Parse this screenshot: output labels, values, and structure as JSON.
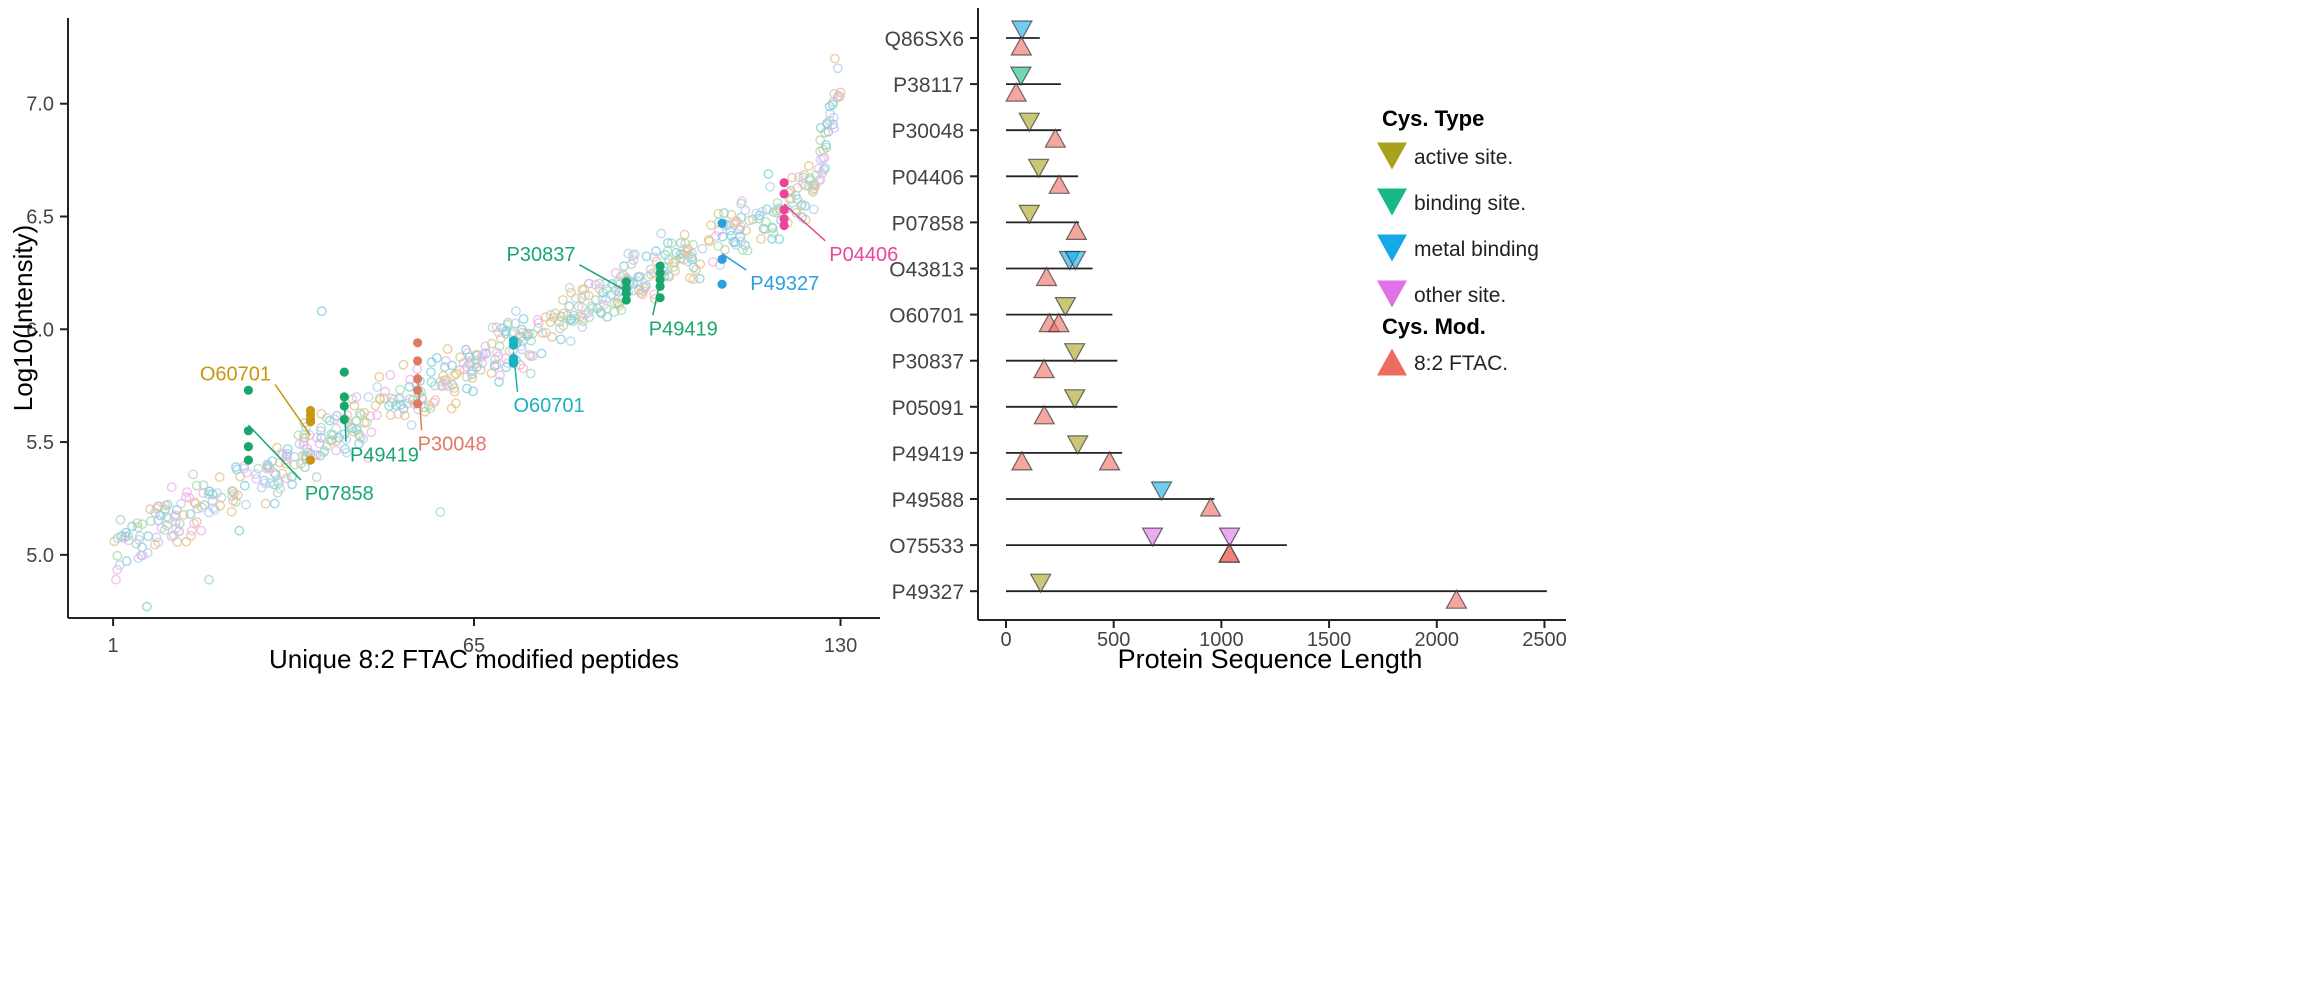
{
  "chart_data": [
    {
      "type": "scatter",
      "xlabel": "Unique 8:2 FTAC modified peptides",
      "ylabel": "Log10(Intensity)",
      "xlim": [
        -7,
        137
      ],
      "ylim": [
        4.72,
        7.38
      ],
      "x_ticks": [
        1,
        65,
        130
      ],
      "y_ticks": [
        5.0,
        5.5,
        6.0,
        6.5,
        7.0
      ],
      "y_tick_labels": [
        "5.0",
        "5.5",
        "6.0",
        "6.5",
        "7.0"
      ],
      "grid": false,
      "legend": "none",
      "background_point_colors": [
        "#7fd0df",
        "#e3c48b",
        "#f3b3ea",
        "#a8dbb6",
        "#b9cfea"
      ],
      "background_point_count": 660,
      "highlight_groups": [
        {
          "label": "P07858",
          "color": "#1aa76e",
          "x": [
            25,
            25,
            25,
            25
          ],
          "y": [
            5.73,
            5.55,
            5.48,
            5.42
          ],
          "label_pos": [
            35,
            5.27
          ]
        },
        {
          "label": "O60701",
          "color": "#c8960f",
          "x": [
            36,
            36,
            36,
            36,
            36
          ],
          "y": [
            5.64,
            5.62,
            5.6,
            5.59,
            5.42
          ],
          "label_pos": [
            29,
            5.8
          ]
        },
        {
          "label": "P49419",
          "color": "#1aa76e",
          "x": [
            42,
            42,
            42,
            42
          ],
          "y": [
            5.81,
            5.7,
            5.66,
            5.6
          ],
          "label_pos": [
            43,
            5.44
          ]
        },
        {
          "label": "P30048",
          "color": "#e07b62",
          "x": [
            55,
            55,
            55,
            55,
            55
          ],
          "y": [
            5.94,
            5.86,
            5.78,
            5.73,
            5.67
          ],
          "label_pos": [
            55,
            5.49
          ]
        },
        {
          "label": "O60701",
          "color": "#19b3bf",
          "x": [
            72,
            72,
            72,
            72,
            72
          ],
          "y": [
            5.95,
            5.93,
            5.87,
            5.86,
            5.85
          ],
          "label_pos": [
            72,
            5.66
          ]
        },
        {
          "label": "P30837",
          "color": "#1aa76e",
          "x": [
            92,
            92,
            92,
            92
          ],
          "y": [
            6.21,
            6.18,
            6.16,
            6.13
          ],
          "label_pos": [
            83,
            6.33
          ]
        },
        {
          "label": "P49419",
          "color": "#1aa76e",
          "x": [
            98,
            98,
            98,
            98,
            98
          ],
          "y": [
            6.28,
            6.25,
            6.22,
            6.19,
            6.14
          ],
          "label_pos": [
            96,
            6.0
          ]
        },
        {
          "label": "P49327",
          "color": "#2b9fe0",
          "x": [
            109,
            109,
            109
          ],
          "y": [
            6.47,
            6.31,
            6.2
          ],
          "label_pos": [
            114,
            6.2
          ]
        },
        {
          "label": "P04406",
          "color": "#e8479c",
          "x": [
            120,
            120,
            120,
            120,
            120
          ],
          "y": [
            6.65,
            6.6,
            6.53,
            6.49,
            6.46
          ],
          "label_pos": [
            128,
            6.33
          ]
        }
      ]
    },
    {
      "type": "dot-range",
      "xlabel": "Protein Sequence Length",
      "ylabel": "",
      "xlim": [
        -130,
        2600
      ],
      "x_ticks": [
        0,
        500,
        1000,
        1500,
        2000,
        2500
      ],
      "x_tick_labels": [
        "0",
        "500",
        "1000",
        "1500",
        "2000",
        "2500"
      ],
      "grid": false,
      "legend_position": "right",
      "legend": {
        "type_title": "Cys. Type",
        "type_items": [
          {
            "label": "active site.",
            "color": "#a6a21c",
            "shape": "triangle-down"
          },
          {
            "label": "binding site.",
            "color": "#16b887",
            "shape": "triangle-down"
          },
          {
            "label": "metal binding",
            "color": "#14a9e6",
            "shape": "triangle-down"
          },
          {
            "label": "other site.",
            "color": "#e072e6",
            "shape": "triangle-down"
          }
        ],
        "mod_title": "Cys. Mod.",
        "mod_items": [
          {
            "label": "8:2 FTAC.",
            "color": "#ee6b5f",
            "shape": "triangle-up"
          }
        ]
      },
      "proteins": [
        {
          "id": "Q86SX6",
          "length": 157,
          "cys_type": [
            {
              "pos": 74,
              "type": "metal binding"
            }
          ],
          "mod": [
            71
          ]
        },
        {
          "id": "P38117",
          "length": 255,
          "cys_type": [
            {
              "pos": 69,
              "type": "binding site."
            }
          ],
          "mod": [
            47
          ]
        },
        {
          "id": "P30048",
          "length": 256,
          "cys_type": [
            {
              "pos": 108,
              "type": "active site."
            }
          ],
          "mod": [
            229
          ]
        },
        {
          "id": "P04406",
          "length": 335,
          "cys_type": [
            {
              "pos": 152,
              "type": "active site."
            }
          ],
          "mod": [
            247
          ]
        },
        {
          "id": "P07858",
          "length": 339,
          "cys_type": [
            {
              "pos": 108,
              "type": "active site."
            }
          ],
          "mod": [
            327
          ]
        },
        {
          "id": "O43813",
          "length": 402,
          "cys_type": [
            {
              "pos": 295,
              "type": "metal binding"
            },
            {
              "pos": 322,
              "type": "metal binding"
            }
          ],
          "mod": [
            188
          ]
        },
        {
          "id": "O60701",
          "length": 494,
          "cys_type": [
            {
              "pos": 276,
              "type": "active site."
            }
          ],
          "mod": [
            201,
            245
          ]
        },
        {
          "id": "P30837",
          "length": 517,
          "cys_type": [
            {
              "pos": 319,
              "type": "active site."
            }
          ],
          "mod": [
            177
          ]
        },
        {
          "id": "P05091",
          "length": 517,
          "cys_type": [
            {
              "pos": 319,
              "type": "active site."
            }
          ],
          "mod": [
            178
          ]
        },
        {
          "id": "P49419",
          "length": 539,
          "cys_type": [
            {
              "pos": 333,
              "type": "active site."
            }
          ],
          "mod": [
            74,
            481
          ]
        },
        {
          "id": "P49588",
          "length": 968,
          "cys_type": [
            {
              "pos": 722,
              "type": "metal binding"
            }
          ],
          "mod": [
            950
          ]
        },
        {
          "id": "O75533",
          "length": 1304,
          "cys_type": [
            {
              "pos": 680,
              "type": "other site."
            },
            {
              "pos": 1038,
              "type": "other site."
            }
          ],
          "mod": [
            1036,
            1037
          ]
        },
        {
          "id": "P49327",
          "length": 2511,
          "cys_type": [
            {
              "pos": 161,
              "type": "active site."
            }
          ],
          "mod": [
            2091
          ]
        }
      ]
    }
  ]
}
